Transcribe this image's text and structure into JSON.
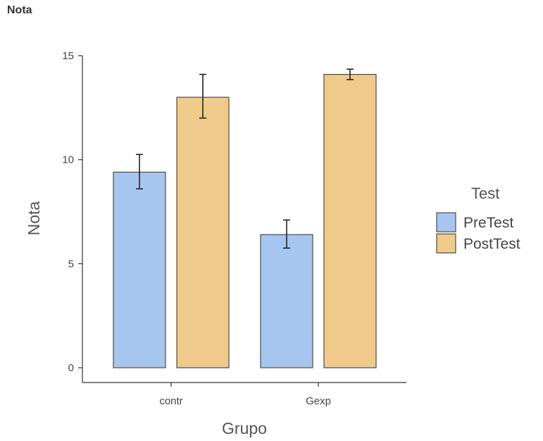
{
  "page": {
    "title": "Nota"
  },
  "colors": {
    "pretest": "#a6c6f0",
    "posttest": "#f0ca8a",
    "border": "#4a4a4a",
    "axis": "#333333"
  },
  "chart_data": {
    "type": "bar",
    "title": "",
    "xlabel": "Grupo",
    "ylabel": "Nota",
    "ylim": [
      0,
      15
    ],
    "yticks": [
      "0",
      "5",
      "10",
      "15"
    ],
    "categories": [
      "contr",
      "Gexp"
    ],
    "legend": {
      "title": "Test",
      "placement": "right"
    },
    "series": [
      {
        "name": "PreTest",
        "color": "#a6c6f0",
        "values": [
          9.4,
          6.4
        ],
        "error_low": [
          8.6,
          5.75
        ],
        "error_high": [
          10.25,
          7.1
        ]
      },
      {
        "name": "PostTest",
        "color": "#f0ca8a",
        "values": [
          13.0,
          14.1
        ],
        "error_low": [
          12.0,
          13.85
        ],
        "error_high": [
          14.1,
          14.35
        ]
      }
    ],
    "grid": false
  }
}
